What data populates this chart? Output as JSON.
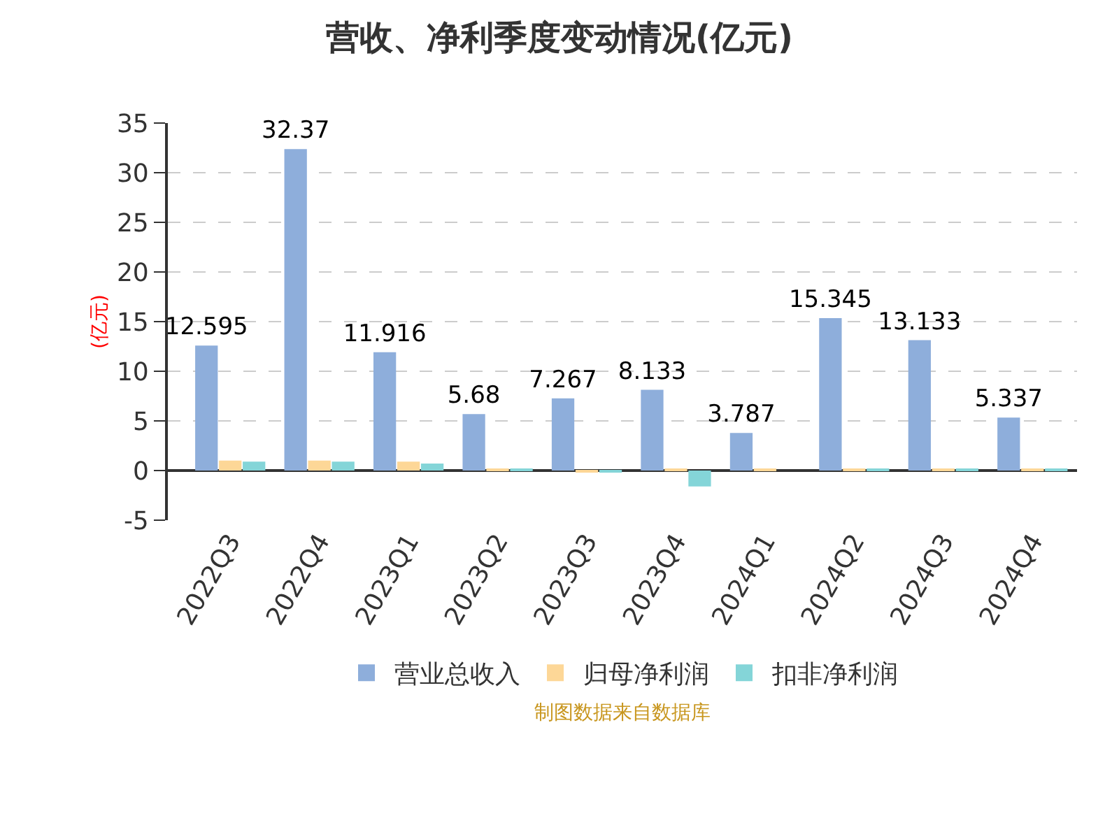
{
  "chart_data": {
    "type": "bar",
    "title": "营收、净利季度变动情况(亿元)",
    "ylabel": "(亿元)",
    "categories": [
      "2022Q3",
      "2022Q4",
      "2023Q1",
      "2023Q2",
      "2023Q3",
      "2023Q4",
      "2024Q1",
      "2024Q2",
      "2024Q3",
      "2024Q4"
    ],
    "series": [
      {
        "name": "营业总收入",
        "color": "#8eaedb",
        "values": [
          12.595,
          32.37,
          11.916,
          5.68,
          7.267,
          8.133,
          3.787,
          15.345,
          13.133,
          5.337
        ],
        "value_labels": [
          "12.595",
          "32.37",
          "11.916",
          "5.68",
          "7.267",
          "8.133",
          "3.787",
          "15.345",
          "13.133",
          "5.337"
        ]
      },
      {
        "name": "归母净利润",
        "color": "#fdd797",
        "values": [
          1.0,
          1.0,
          0.9,
          0.2,
          -0.2,
          0.1,
          0.2,
          0.1,
          0.2,
          0.1
        ]
      },
      {
        "name": "扣非净利润",
        "color": "#84d5d8",
        "values": [
          0.9,
          0.9,
          0.7,
          0.2,
          -0.2,
          -1.6,
          0.0,
          0.1,
          0.2,
          0.1
        ]
      }
    ],
    "ylim": [
      -5,
      35
    ],
    "yticks": [
      -5,
      0,
      5,
      10,
      15,
      20,
      25,
      30,
      35
    ],
    "grid": "y",
    "legend": "bottom",
    "annotations": [
      "制图数据来自数据库"
    ]
  }
}
